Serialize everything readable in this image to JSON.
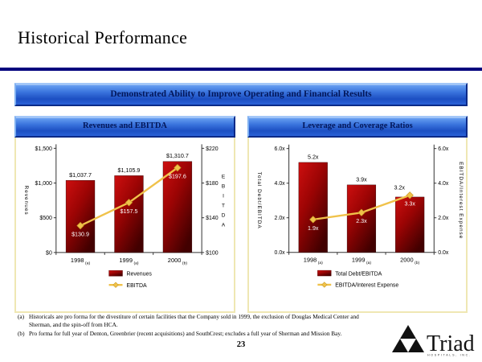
{
  "slide": {
    "title": "Historical Performance",
    "banner": "Demonstrated Ability to Improve Operating and Financial Results",
    "page_number": "23",
    "footnotes": [
      {
        "marker": "(a)",
        "text": "Historicals are pro forma for the divestiture of certain facilities that the Company sold in 1999, the exclusion of Douglas Medical Center and Sherman, and the spin-off from HCA."
      },
      {
        "marker": "(b)",
        "text": "Pro forma for full year of Denton, Greenbrier (recent acquisitions) and SouthCrest; excludes a full year of Sherman and Mission Bay."
      }
    ],
    "logo": {
      "wordmark": "Triad",
      "subtext": "HOSPITALS, INC."
    }
  },
  "colors": {
    "rule_navy": "#00007d",
    "banner_text": "#03175a",
    "bar_red_light": "#cd0f0f",
    "bar_red_mid": "#9b0404",
    "bar_red_dark": "#420000",
    "line_gold": "#f0c24a",
    "line_gold_edge": "#c89a28",
    "panel_border": "#efe7b3",
    "label_white": "#ffffff"
  },
  "chart_data": [
    {
      "type": "bar+line",
      "title": "Revenues and EBITDA",
      "categories": [
        "1998",
        "1999",
        "2000"
      ],
      "category_footnotes": [
        "(a)",
        "(a)",
        "(b)"
      ],
      "bar_series": {
        "name": "Revenues",
        "axis": "left",
        "values": [
          1037.7,
          1105.9,
          1310.7
        ],
        "labels": [
          "$1,037.7",
          "$1,105.9",
          "$1,310.7"
        ]
      },
      "line_series": {
        "name": "EBITDA",
        "axis": "right",
        "values": [
          130.9,
          157.5,
          197.6
        ],
        "labels": [
          "$130.9",
          "$157.5",
          "$197.6"
        ]
      },
      "left_axis": {
        "title": "Revenues",
        "min": 0,
        "max": 1500,
        "ticks": [
          "$0",
          "$500",
          "$1,000",
          "$1,500"
        ]
      },
      "right_axis": {
        "title": "EBITDA",
        "min": 100,
        "max": 220,
        "ticks": [
          "$100",
          "$140",
          "$180",
          "$220"
        ]
      },
      "legend": [
        {
          "type": "bar",
          "label": "Revenues"
        },
        {
          "type": "line",
          "label": "EBITDA"
        }
      ]
    },
    {
      "type": "bar+line",
      "title": "Leverage and Coverage Ratios",
      "categories": [
        "1998",
        "1999",
        "2000"
      ],
      "category_footnotes": [
        "(a)",
        "(a)",
        "(b)"
      ],
      "bar_series": {
        "name": "Total Debt/EBITDA",
        "axis": "left",
        "values": [
          5.2,
          3.9,
          3.2
        ],
        "labels": [
          "5.2x",
          "3.9x",
          "3.2x"
        ]
      },
      "line_series": {
        "name": "EBITDA/Interest Expense",
        "axis": "right",
        "values": [
          1.9,
          2.3,
          3.3
        ],
        "labels": [
          "1.9x",
          "2.3x",
          "3.3x"
        ]
      },
      "left_axis": {
        "title": "Total Debt/EBITDA",
        "min": 0,
        "max": 6,
        "ticks": [
          "0.0x",
          "2.0x",
          "4.0x",
          "6.0x"
        ]
      },
      "right_axis": {
        "title": "EBITDA/Interest Expense",
        "min": 0,
        "max": 6,
        "ticks": [
          "0.0x",
          "2.0x",
          "4.0x",
          "6.0x"
        ]
      },
      "legend": [
        {
          "type": "bar",
          "label": "Total Debt/EBITDA"
        },
        {
          "type": "line",
          "label": "EBITDA/Interest Expense"
        }
      ]
    }
  ]
}
